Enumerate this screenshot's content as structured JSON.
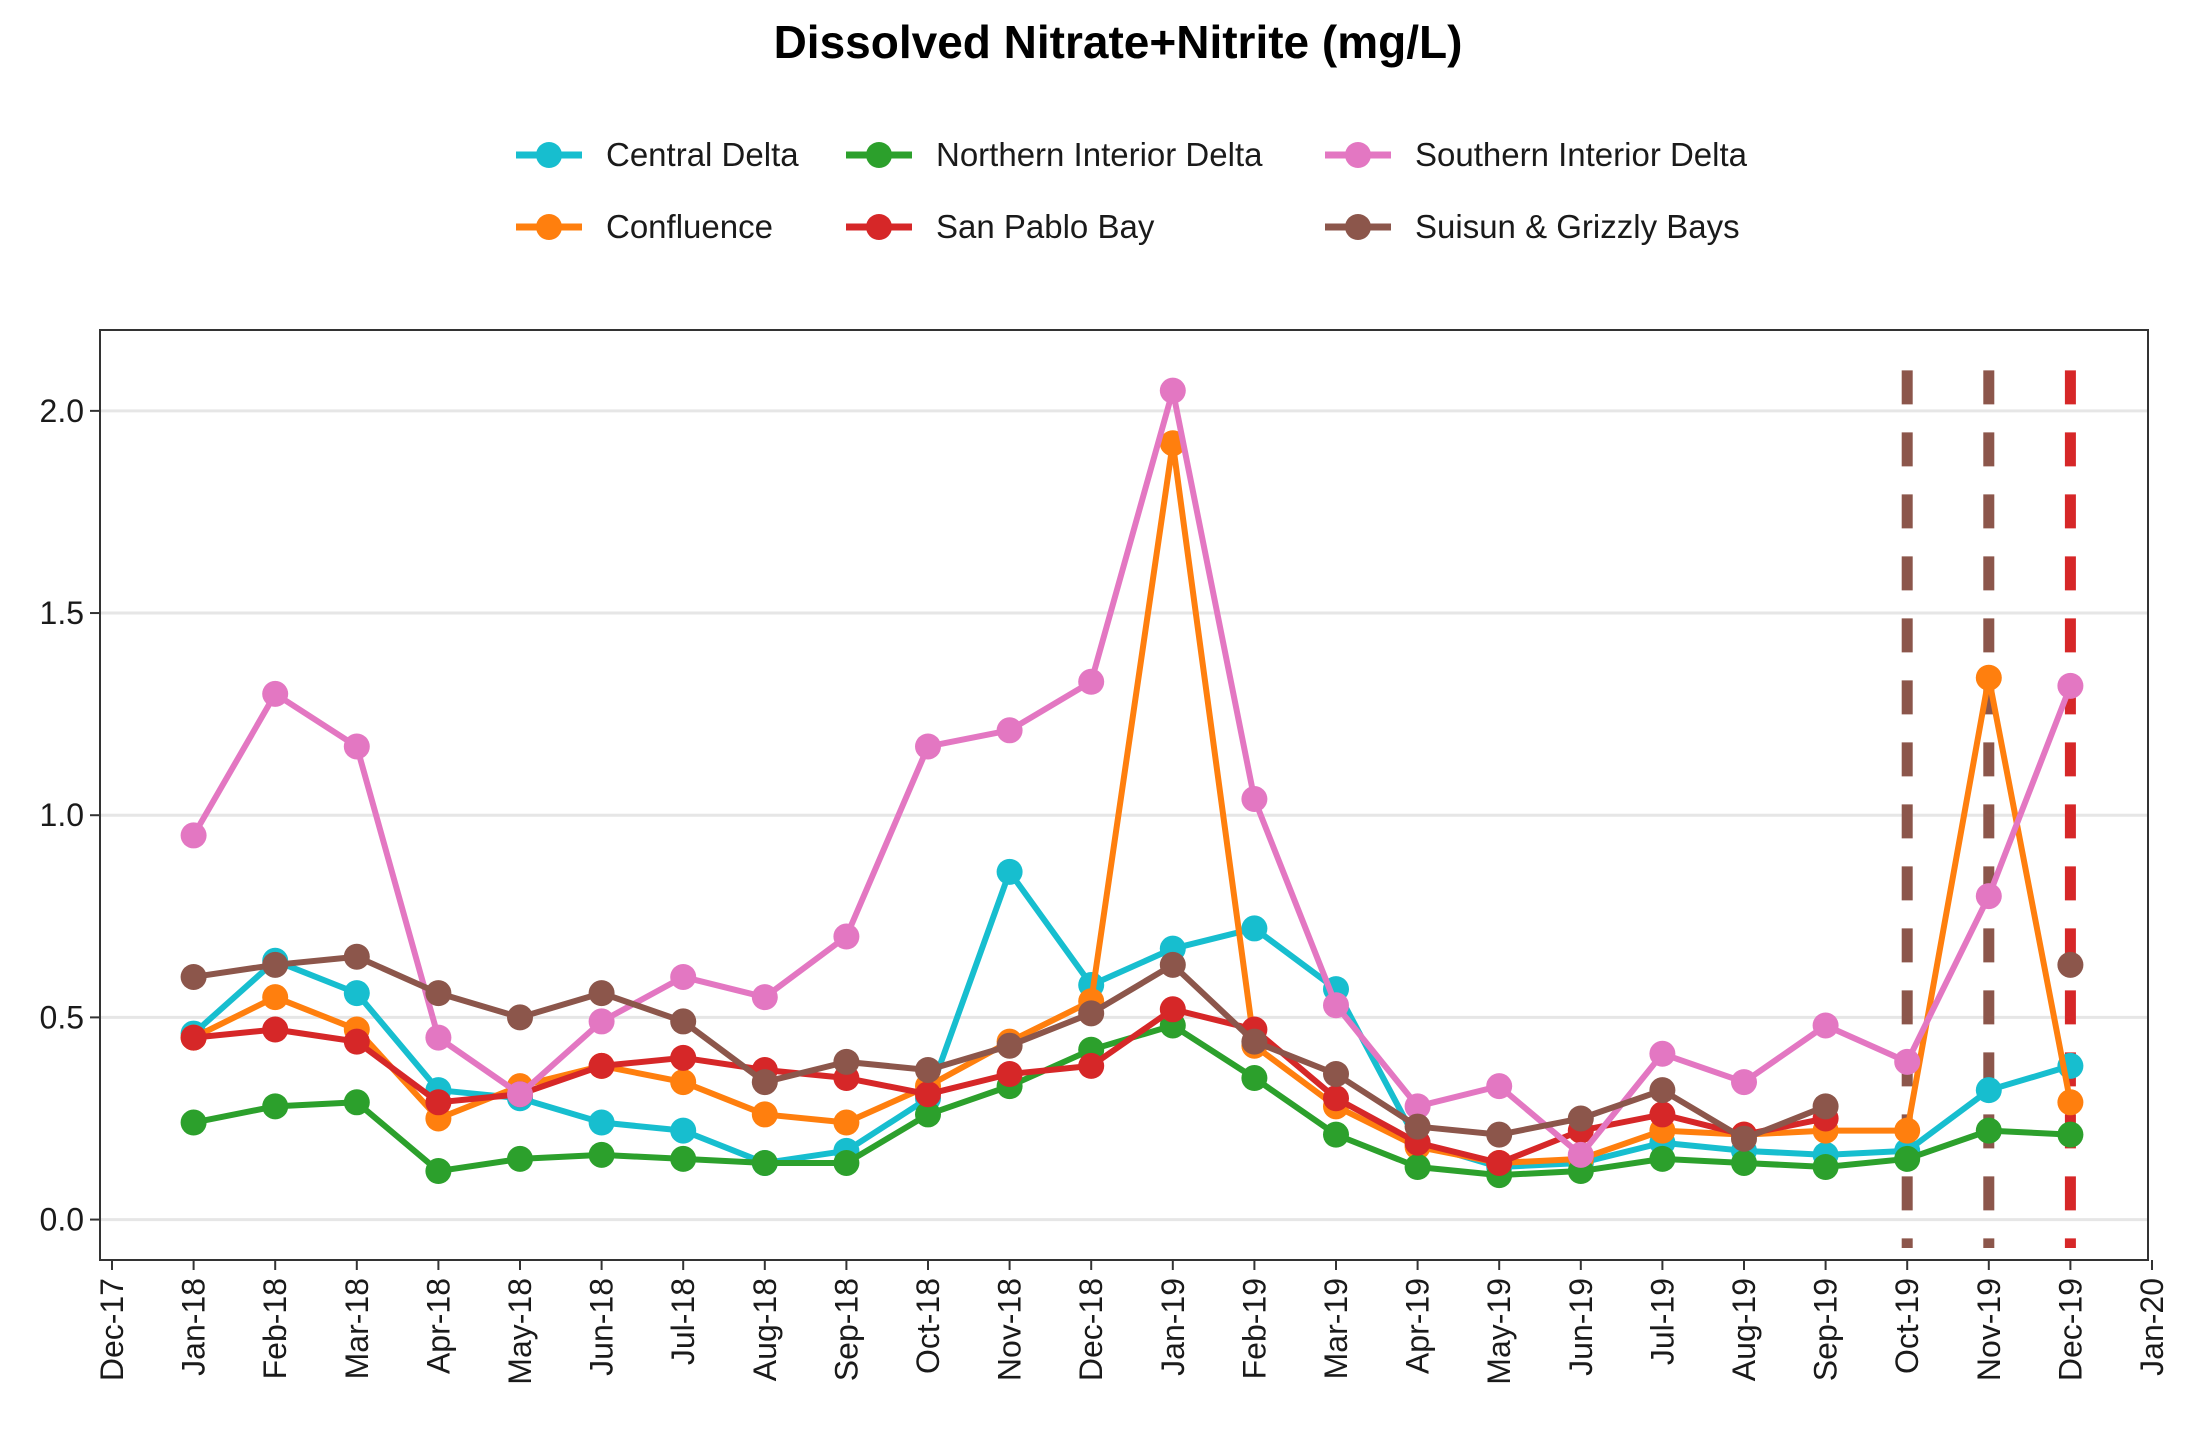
{
  "chart_data": {
    "type": "line",
    "title": "Dissolved Nitrate+Nitrite (mg/L)",
    "xlabel": "",
    "ylabel": "",
    "x_tick_labels": [
      "Dec-17",
      "Jan-18",
      "Feb-18",
      "Mar-18",
      "Apr-18",
      "May-18",
      "Jun-18",
      "Jul-18",
      "Aug-18",
      "Sep-18",
      "Oct-18",
      "Nov-18",
      "Dec-18",
      "Jan-19",
      "Feb-19",
      "Mar-19",
      "Apr-19",
      "May-19",
      "Jun-19",
      "Jul-19",
      "Aug-19",
      "Sep-19",
      "Oct-19",
      "Nov-19",
      "Dec-19",
      "Jan-20"
    ],
    "x": [
      "Jan-18",
      "Feb-18",
      "Mar-18",
      "Apr-18",
      "May-18",
      "Jun-18",
      "Jul-18",
      "Aug-18",
      "Sep-18",
      "Oct-18",
      "Nov-18",
      "Dec-18",
      "Jan-19",
      "Feb-19",
      "Mar-19",
      "Apr-19",
      "May-19",
      "Jun-19",
      "Jul-19",
      "Aug-19",
      "Sep-19",
      "Oct-19",
      "Nov-19",
      "Dec-19"
    ],
    "ylim": [
      -0.1,
      2.2
    ],
    "y_ticks": [
      0.0,
      0.5,
      1.0,
      1.5,
      2.0
    ],
    "y_tick_labels": [
      "0.0",
      "0.5",
      "1.0",
      "1.5",
      "2.0"
    ],
    "grid": "horizontal",
    "legend_position": "top",
    "series": [
      {
        "name": "Central Delta",
        "color": "#17becf",
        "values": [
          0.46,
          0.64,
          0.56,
          0.32,
          0.3,
          0.24,
          0.22,
          0.14,
          0.17,
          0.3,
          0.86,
          0.58,
          0.67,
          0.72,
          0.57,
          0.19,
          0.13,
          0.14,
          0.19,
          0.17,
          0.16,
          0.17,
          0.32,
          0.38
        ]
      },
      {
        "name": "Confluence",
        "color": "#ff7f0e",
        "values": [
          0.45,
          0.55,
          0.47,
          0.25,
          0.33,
          0.38,
          0.34,
          0.26,
          0.24,
          0.33,
          0.44,
          0.54,
          1.92,
          0.43,
          0.28,
          0.18,
          0.14,
          0.15,
          0.22,
          0.21,
          0.22,
          0.22,
          1.34,
          0.29
        ]
      },
      {
        "name": "Northern Interior Delta",
        "color": "#2ca02c",
        "values": [
          0.24,
          0.28,
          0.29,
          0.12,
          0.15,
          0.16,
          0.15,
          0.14,
          0.14,
          0.26,
          0.33,
          0.42,
          0.48,
          0.35,
          0.21,
          0.13,
          0.11,
          0.12,
          0.15,
          0.14,
          0.13,
          0.15,
          0.22,
          0.21
        ]
      },
      {
        "name": "San Pablo Bay",
        "color": "#d62728",
        "values": [
          0.45,
          0.47,
          0.44,
          0.29,
          0.31,
          0.38,
          0.4,
          0.37,
          0.35,
          0.31,
          0.36,
          0.38,
          0.52,
          0.47,
          0.3,
          0.19,
          0.14,
          0.22,
          0.26,
          0.21,
          0.25,
          null,
          null,
          null
        ]
      },
      {
        "name": "Southern Interior Delta",
        "color": "#e377c2",
        "values": [
          0.95,
          1.3,
          1.17,
          0.45,
          0.31,
          0.49,
          0.6,
          0.55,
          0.7,
          1.17,
          1.21,
          1.33,
          2.05,
          1.04,
          0.53,
          0.28,
          0.33,
          0.16,
          0.41,
          0.34,
          0.48,
          0.39,
          0.8,
          1.32
        ]
      },
      {
        "name": "Suisun & Grizzly Bays",
        "color": "#8c564b",
        "values": [
          0.6,
          0.63,
          0.65,
          0.56,
          0.5,
          0.56,
          0.49,
          0.34,
          0.39,
          0.37,
          0.43,
          0.51,
          0.63,
          0.44,
          0.36,
          0.23,
          0.21,
          0.25,
          0.32,
          0.2,
          0.28,
          null,
          null,
          0.63
        ]
      }
    ],
    "vertical_lines": [
      {
        "x": "Oct-19",
        "color": "#8c564b",
        "style": "dashed"
      },
      {
        "x": "Nov-19",
        "color": "#8c564b",
        "style": "dashed"
      },
      {
        "x": "Dec-19",
        "color": "#d62728",
        "style": "dashed"
      }
    ],
    "legend": [
      {
        "label": "Central Delta",
        "color": "#17becf"
      },
      {
        "label": "Northern Interior Delta",
        "color": "#2ca02c"
      },
      {
        "label": "Southern Interior Delta",
        "color": "#e377c2"
      },
      {
        "label": "Confluence",
        "color": "#ff7f0e"
      },
      {
        "label": "San Pablo Bay",
        "color": "#d62728"
      },
      {
        "label": "Suisun & Grizzly Bays",
        "color": "#8c564b"
      }
    ]
  }
}
